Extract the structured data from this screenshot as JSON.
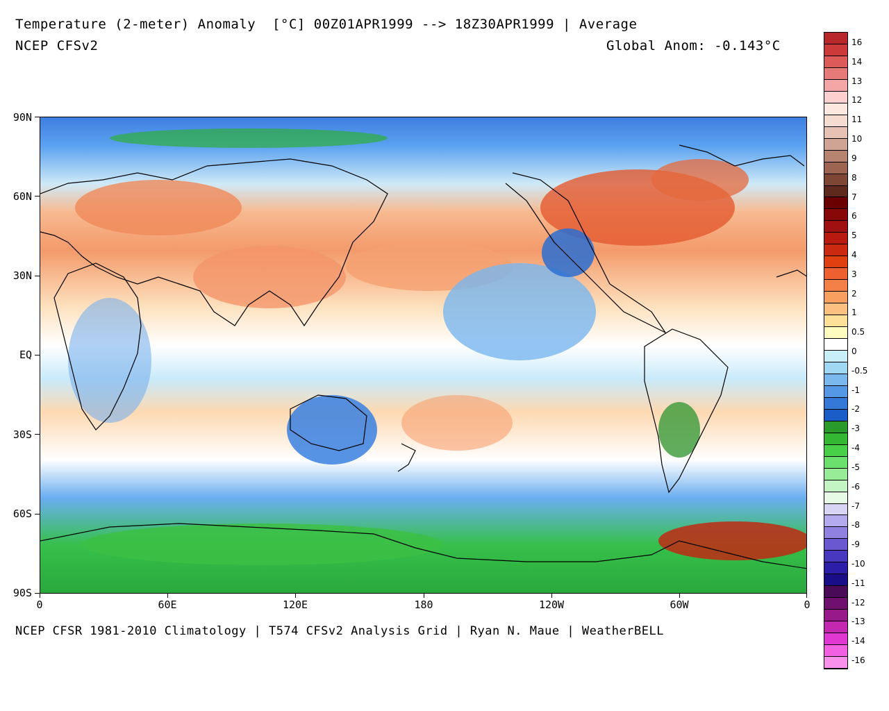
{
  "header": {
    "title": "Temperature (2-meter) Anomaly  [°C] 00Z01APR1999 --> 18Z30APR1999 | Average",
    "model": "NCEP CFSv2",
    "global_anom": "Global Anom: -0.143°C"
  },
  "footer": "NCEP CFSR 1981-2010 Climatology | T574 CFSv2 Analysis Grid | Ryan N. Maue | WeatherBELL",
  "axes": {
    "y_ticks": [
      "90N",
      "60N",
      "30N",
      "EQ",
      "30S",
      "60S",
      "90S"
    ],
    "x_ticks": [
      "0",
      "60E",
      "120E",
      "180",
      "120W",
      "60W",
      "0"
    ]
  },
  "colorbar": {
    "colors": [
      "#b8282a",
      "#cc3a3a",
      "#dc5a58",
      "#e67a78",
      "#f4a6a6",
      "#fdd0d0",
      "#fde8e0",
      "#f4dcd0",
      "#e6c2b4",
      "#d0a494",
      "#b88472",
      "#9e6452",
      "#7e4634",
      "#5e2a1e",
      "#6a0000",
      "#880808",
      "#a01010",
      "#b81a10",
      "#cc2a10",
      "#e04010",
      "#ee6030",
      "#f48048",
      "#f8a060",
      "#fcc080",
      "#fee098",
      "#fffcc0",
      "#ffffff",
      "#c8eef8",
      "#a0d8f4",
      "#7ab8ee",
      "#5498e6",
      "#3478d8",
      "#1a5cc8",
      "#2a9a2a",
      "#34b834",
      "#48d048",
      "#6ce06c",
      "#98ec98",
      "#c4f4c4",
      "#e6fae6",
      "#d8d4f4",
      "#b4aaee",
      "#9080e0",
      "#6a58d0",
      "#4838c0",
      "#2c1ea8",
      "#1a0e88",
      "#4a0a58",
      "#70106e",
      "#981a8a",
      "#c428b0",
      "#e038d0",
      "#f060e0",
      "#f890ec"
    ],
    "labels": [
      "16",
      "14",
      "13",
      "12",
      "11",
      "10",
      "9",
      "8",
      "7",
      "6",
      "5",
      "4",
      "3",
      "2",
      "1",
      "0.5",
      "0",
      "-0.5",
      "-1",
      "-2",
      "-3",
      "-4",
      "-5",
      "-6",
      "-7",
      "-8",
      "-9",
      "-10",
      "-11",
      "-12",
      "-13",
      "-14",
      "-16"
    ]
  }
}
